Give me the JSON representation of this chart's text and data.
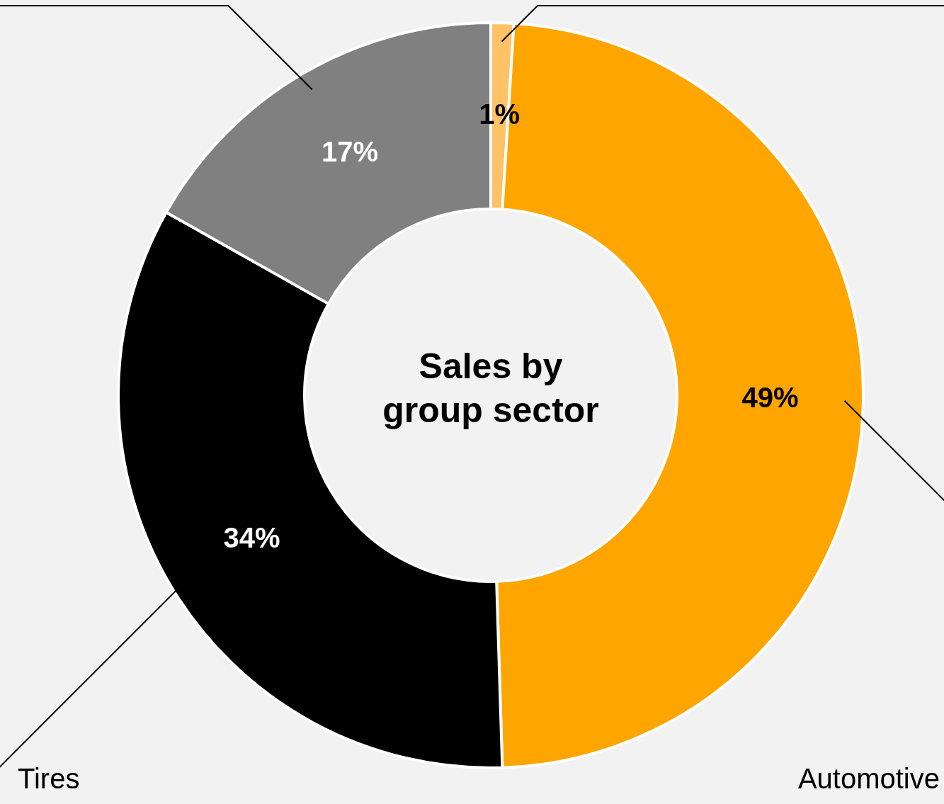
{
  "chart_data": {
    "type": "donut",
    "title": "Sales by group sector",
    "categories": [
      null,
      "Automotive",
      "Tires",
      null
    ],
    "values": [
      1,
      49,
      34,
      17
    ],
    "colors": [
      "#ffc266",
      "#ffa500",
      "#000000",
      "#808080"
    ],
    "value_labels": [
      "1%",
      "49%",
      "34%",
      "17%"
    ],
    "legend": false
  }
}
